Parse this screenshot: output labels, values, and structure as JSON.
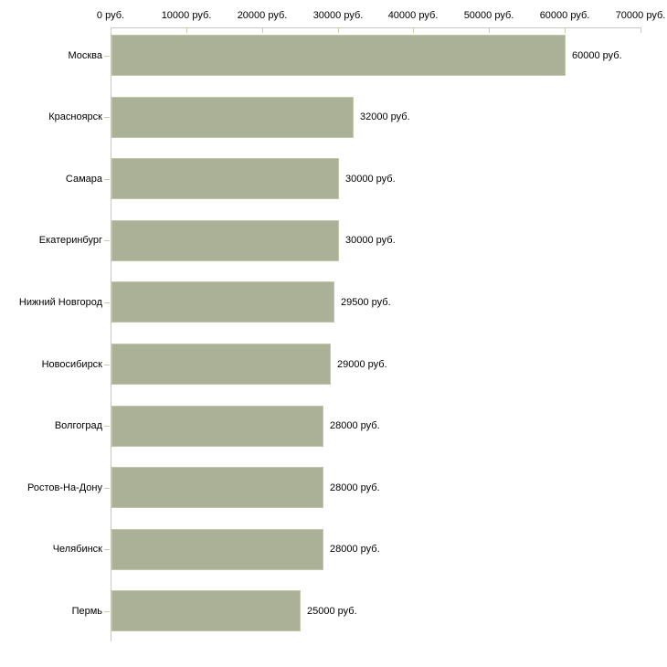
{
  "page": {
    "background": "#ffffff"
  },
  "chart_data": {
    "type": "bar",
    "orientation": "horizontal",
    "title": "",
    "xlabel": "",
    "ylabel": "",
    "unit": "руб.",
    "categories": [
      "Москва",
      "Красноярск",
      "Самара",
      "Екатеринбург",
      "Нижний Новгород",
      "Новосибирск",
      "Волгоград",
      "Ростов-На-Дону",
      "Челябинск",
      "Пермь"
    ],
    "values": [
      60000,
      32000,
      30000,
      30000,
      29500,
      29000,
      28000,
      28000,
      28000,
      25000
    ],
    "value_labels": [
      "60000 руб.",
      "32000 руб.",
      "30000 руб.",
      "30000 руб.",
      "29500 руб.",
      "29000 руб.",
      "28000 руб.",
      "28000 руб.",
      "28000 руб.",
      "25000 руб."
    ],
    "x_tick_values": [
      0,
      10000,
      20000,
      30000,
      40000,
      50000,
      60000,
      70000
    ],
    "x_tick_labels": [
      "0 руб.",
      "10000 руб.",
      "20000 руб.",
      "30000 руб.",
      "40000 руб.",
      "50000 руб.",
      "60000 руб.",
      "70000 руб."
    ],
    "xlim": [
      0,
      70000
    ],
    "grid": false,
    "legend": false,
    "axis_position": "top",
    "colors": {
      "bar_fill": "#abb197",
      "bar_border": "#c2c7ac",
      "axis_line": "#c6c6c6",
      "tick_mark": "#cbcba4",
      "label_text": "#000000",
      "background": "#ffffff"
    }
  }
}
